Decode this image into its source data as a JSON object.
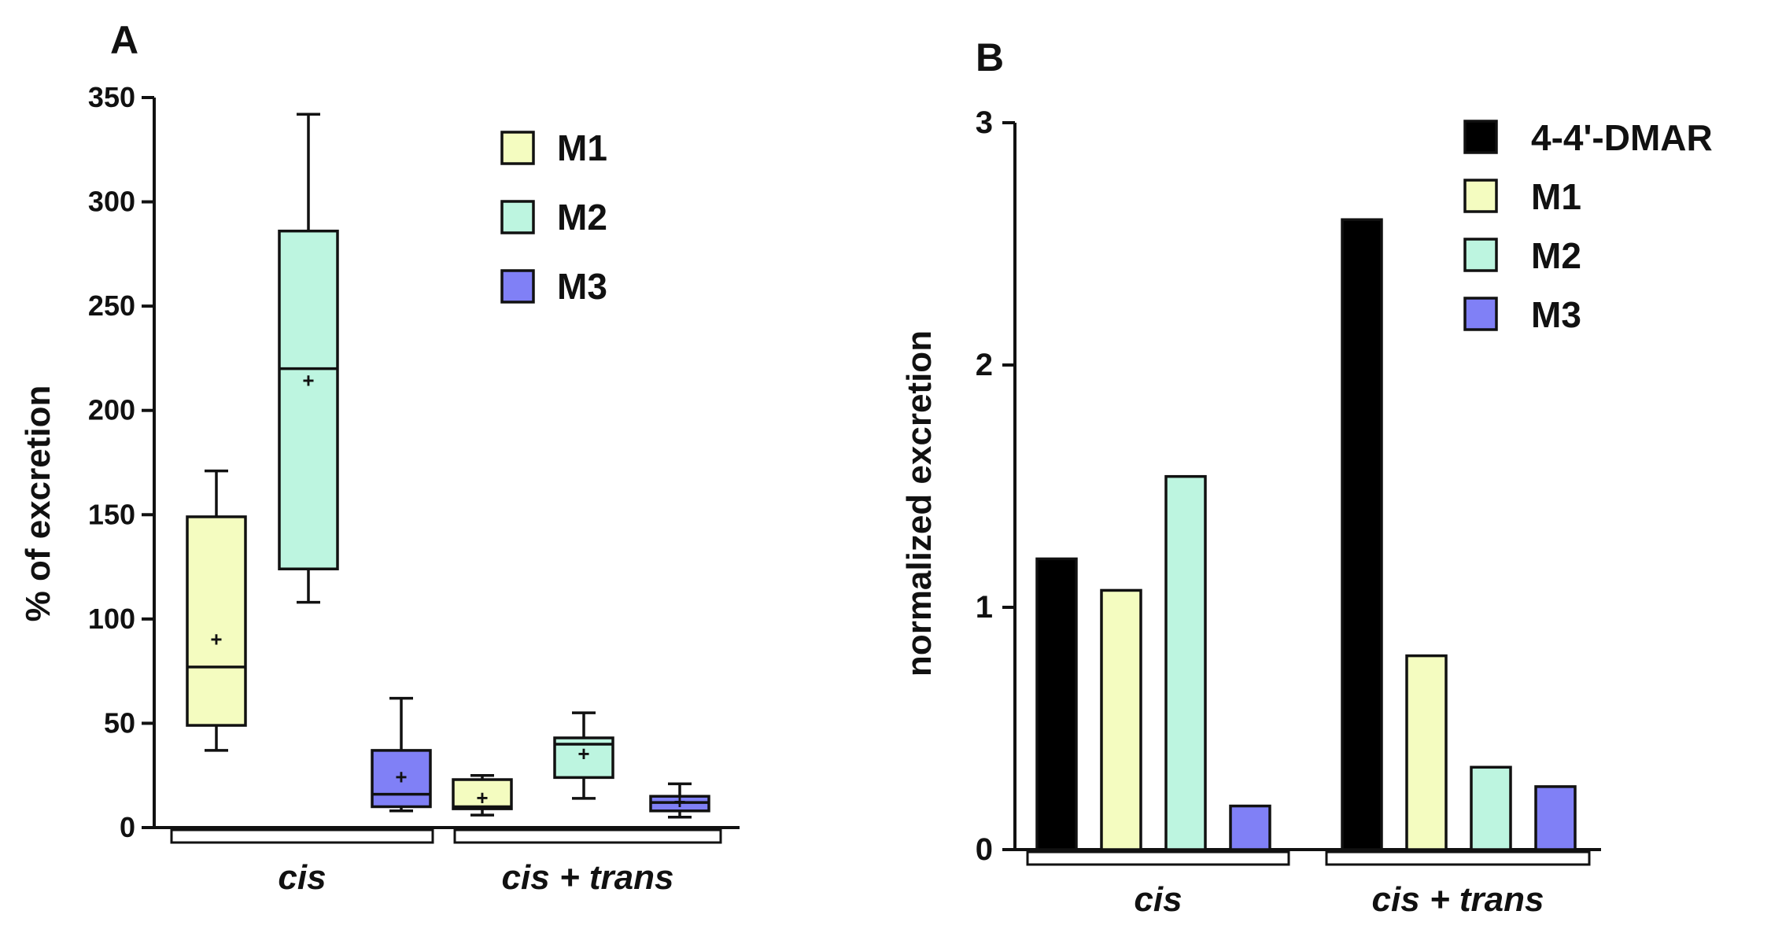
{
  "colors": {
    "M1": "#f4fcc0",
    "M2": "#bdf5e0",
    "M3": "#8080f6",
    "DMAR": "#000000",
    "stroke": "#111111"
  },
  "chart_data": [
    {
      "panel": "A",
      "type": "box",
      "ylabel": "% of excretion",
      "ylim": [
        0,
        350
      ],
      "yticks": [
        0,
        50,
        100,
        150,
        200,
        250,
        300,
        350
      ],
      "groups": [
        "cis",
        "cis + trans"
      ],
      "legend": [
        {
          "name": "M1",
          "color": "#f4fcc0"
        },
        {
          "name": "M2",
          "color": "#bdf5e0"
        },
        {
          "name": "M3",
          "color": "#8080f6"
        }
      ],
      "boxes": [
        {
          "group": "cis",
          "series": "M1",
          "min": 37,
          "q1": 49,
          "median": 77,
          "q3": 149,
          "max": 171,
          "mean": 90
        },
        {
          "group": "cis",
          "series": "M2",
          "min": 108,
          "q1": 124,
          "median": 220,
          "q3": 286,
          "max": 342,
          "mean": 214
        },
        {
          "group": "cis",
          "series": "M3",
          "min": 8,
          "q1": 10,
          "median": 16,
          "q3": 37,
          "max": 62,
          "mean": 24
        },
        {
          "group": "cis + trans",
          "series": "M1",
          "min": 6,
          "q1": 9,
          "median": 10,
          "q3": 23,
          "max": 25,
          "mean": 14
        },
        {
          "group": "cis + trans",
          "series": "M2",
          "min": 14,
          "q1": 24,
          "median": 40,
          "q3": 43,
          "max": 55,
          "mean": 35
        },
        {
          "group": "cis + trans",
          "series": "M3",
          "min": 5,
          "q1": 8,
          "median": 12,
          "q3": 15,
          "max": 21,
          "mean": 12
        }
      ]
    },
    {
      "panel": "B",
      "type": "bar",
      "ylabel": "normalized excretion",
      "ylim": [
        0,
        3
      ],
      "yticks": [
        0,
        1,
        2,
        3
      ],
      "categories": [
        "cis",
        "cis + trans"
      ],
      "series": [
        {
          "name": "4-4'-DMAR",
          "color": "#000000",
          "values": [
            1.2,
            2.6
          ]
        },
        {
          "name": "M1",
          "color": "#f4fcc0",
          "values": [
            1.07,
            0.8
          ]
        },
        {
          "name": "M2",
          "color": "#bdf5e0",
          "values": [
            1.54,
            0.34
          ]
        },
        {
          "name": "M3",
          "color": "#8080f6",
          "values": [
            0.18,
            0.26
          ]
        }
      ]
    }
  ]
}
